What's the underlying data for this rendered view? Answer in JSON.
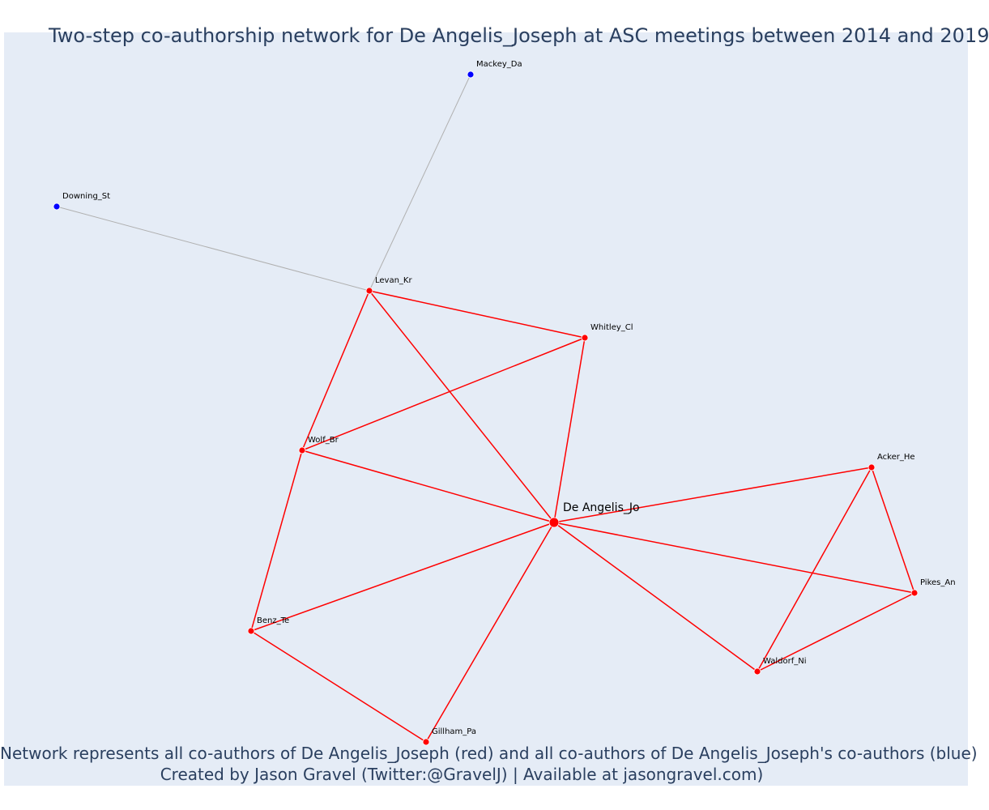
{
  "title": "Two-step co-authorship network for De Angelis_Joseph at ASC meetings between 2014 and 2019",
  "footer": {
    "line1": "Network represents all co-authors of De Angelis_Joseph (red) and all co-authors of De Angelis_Joseph's co-authors (blue)",
    "line2": "Created by Jason Gravel (Twitter:@GravelJ) | Available at jasongravel.com)"
  },
  "colors": {
    "direct": "#ff0000",
    "second": "#0000ff",
    "second_edge": "#b0b0b0",
    "background": "#e5ecf6",
    "title": "#2a3f5f"
  },
  "nodes": [
    {
      "id": "de-angelis",
      "label": "De Angelis_Jo",
      "group": "focal"
    },
    {
      "id": "levan",
      "label": "Levan_Kr",
      "group": "direct"
    },
    {
      "id": "whitley",
      "label": "Whitley_Cl",
      "group": "direct"
    },
    {
      "id": "wolf",
      "label": "Wolf_Br",
      "group": "direct"
    },
    {
      "id": "benz",
      "label": "Benz_Te",
      "group": "direct"
    },
    {
      "id": "gillham",
      "label": "Gillham_Pa",
      "group": "direct"
    },
    {
      "id": "acker",
      "label": "Acker_He",
      "group": "direct"
    },
    {
      "id": "pikes",
      "label": "Pikes_An",
      "group": "direct"
    },
    {
      "id": "waldorf",
      "label": "Waldorf_Ni",
      "group": "direct"
    },
    {
      "id": "mackey",
      "label": "Mackey_Da",
      "group": "second"
    },
    {
      "id": "downing",
      "label": "Downing_St",
      "group": "second"
    }
  ],
  "edges": [
    {
      "source": "levan",
      "target": "mackey",
      "type": "second"
    },
    {
      "source": "levan",
      "target": "downing",
      "type": "second"
    },
    {
      "source": "levan",
      "target": "whitley",
      "type": "direct"
    },
    {
      "source": "levan",
      "target": "wolf",
      "type": "direct"
    },
    {
      "source": "levan",
      "target": "de-angelis",
      "type": "direct"
    },
    {
      "source": "whitley",
      "target": "wolf",
      "type": "direct"
    },
    {
      "source": "whitley",
      "target": "de-angelis",
      "type": "direct"
    },
    {
      "source": "wolf",
      "target": "de-angelis",
      "type": "direct"
    },
    {
      "source": "wolf",
      "target": "benz",
      "type": "direct"
    },
    {
      "source": "benz",
      "target": "de-angelis",
      "type": "direct"
    },
    {
      "source": "benz",
      "target": "gillham",
      "type": "direct"
    },
    {
      "source": "gillham",
      "target": "de-angelis",
      "type": "direct"
    },
    {
      "source": "de-angelis",
      "target": "acker",
      "type": "direct"
    },
    {
      "source": "de-angelis",
      "target": "pikes",
      "type": "direct"
    },
    {
      "source": "de-angelis",
      "target": "waldorf",
      "type": "direct"
    },
    {
      "source": "acker",
      "target": "pikes",
      "type": "direct"
    },
    {
      "source": "acker",
      "target": "waldorf",
      "type": "direct"
    },
    {
      "source": "pikes",
      "target": "waldorf",
      "type": "direct"
    }
  ]
}
